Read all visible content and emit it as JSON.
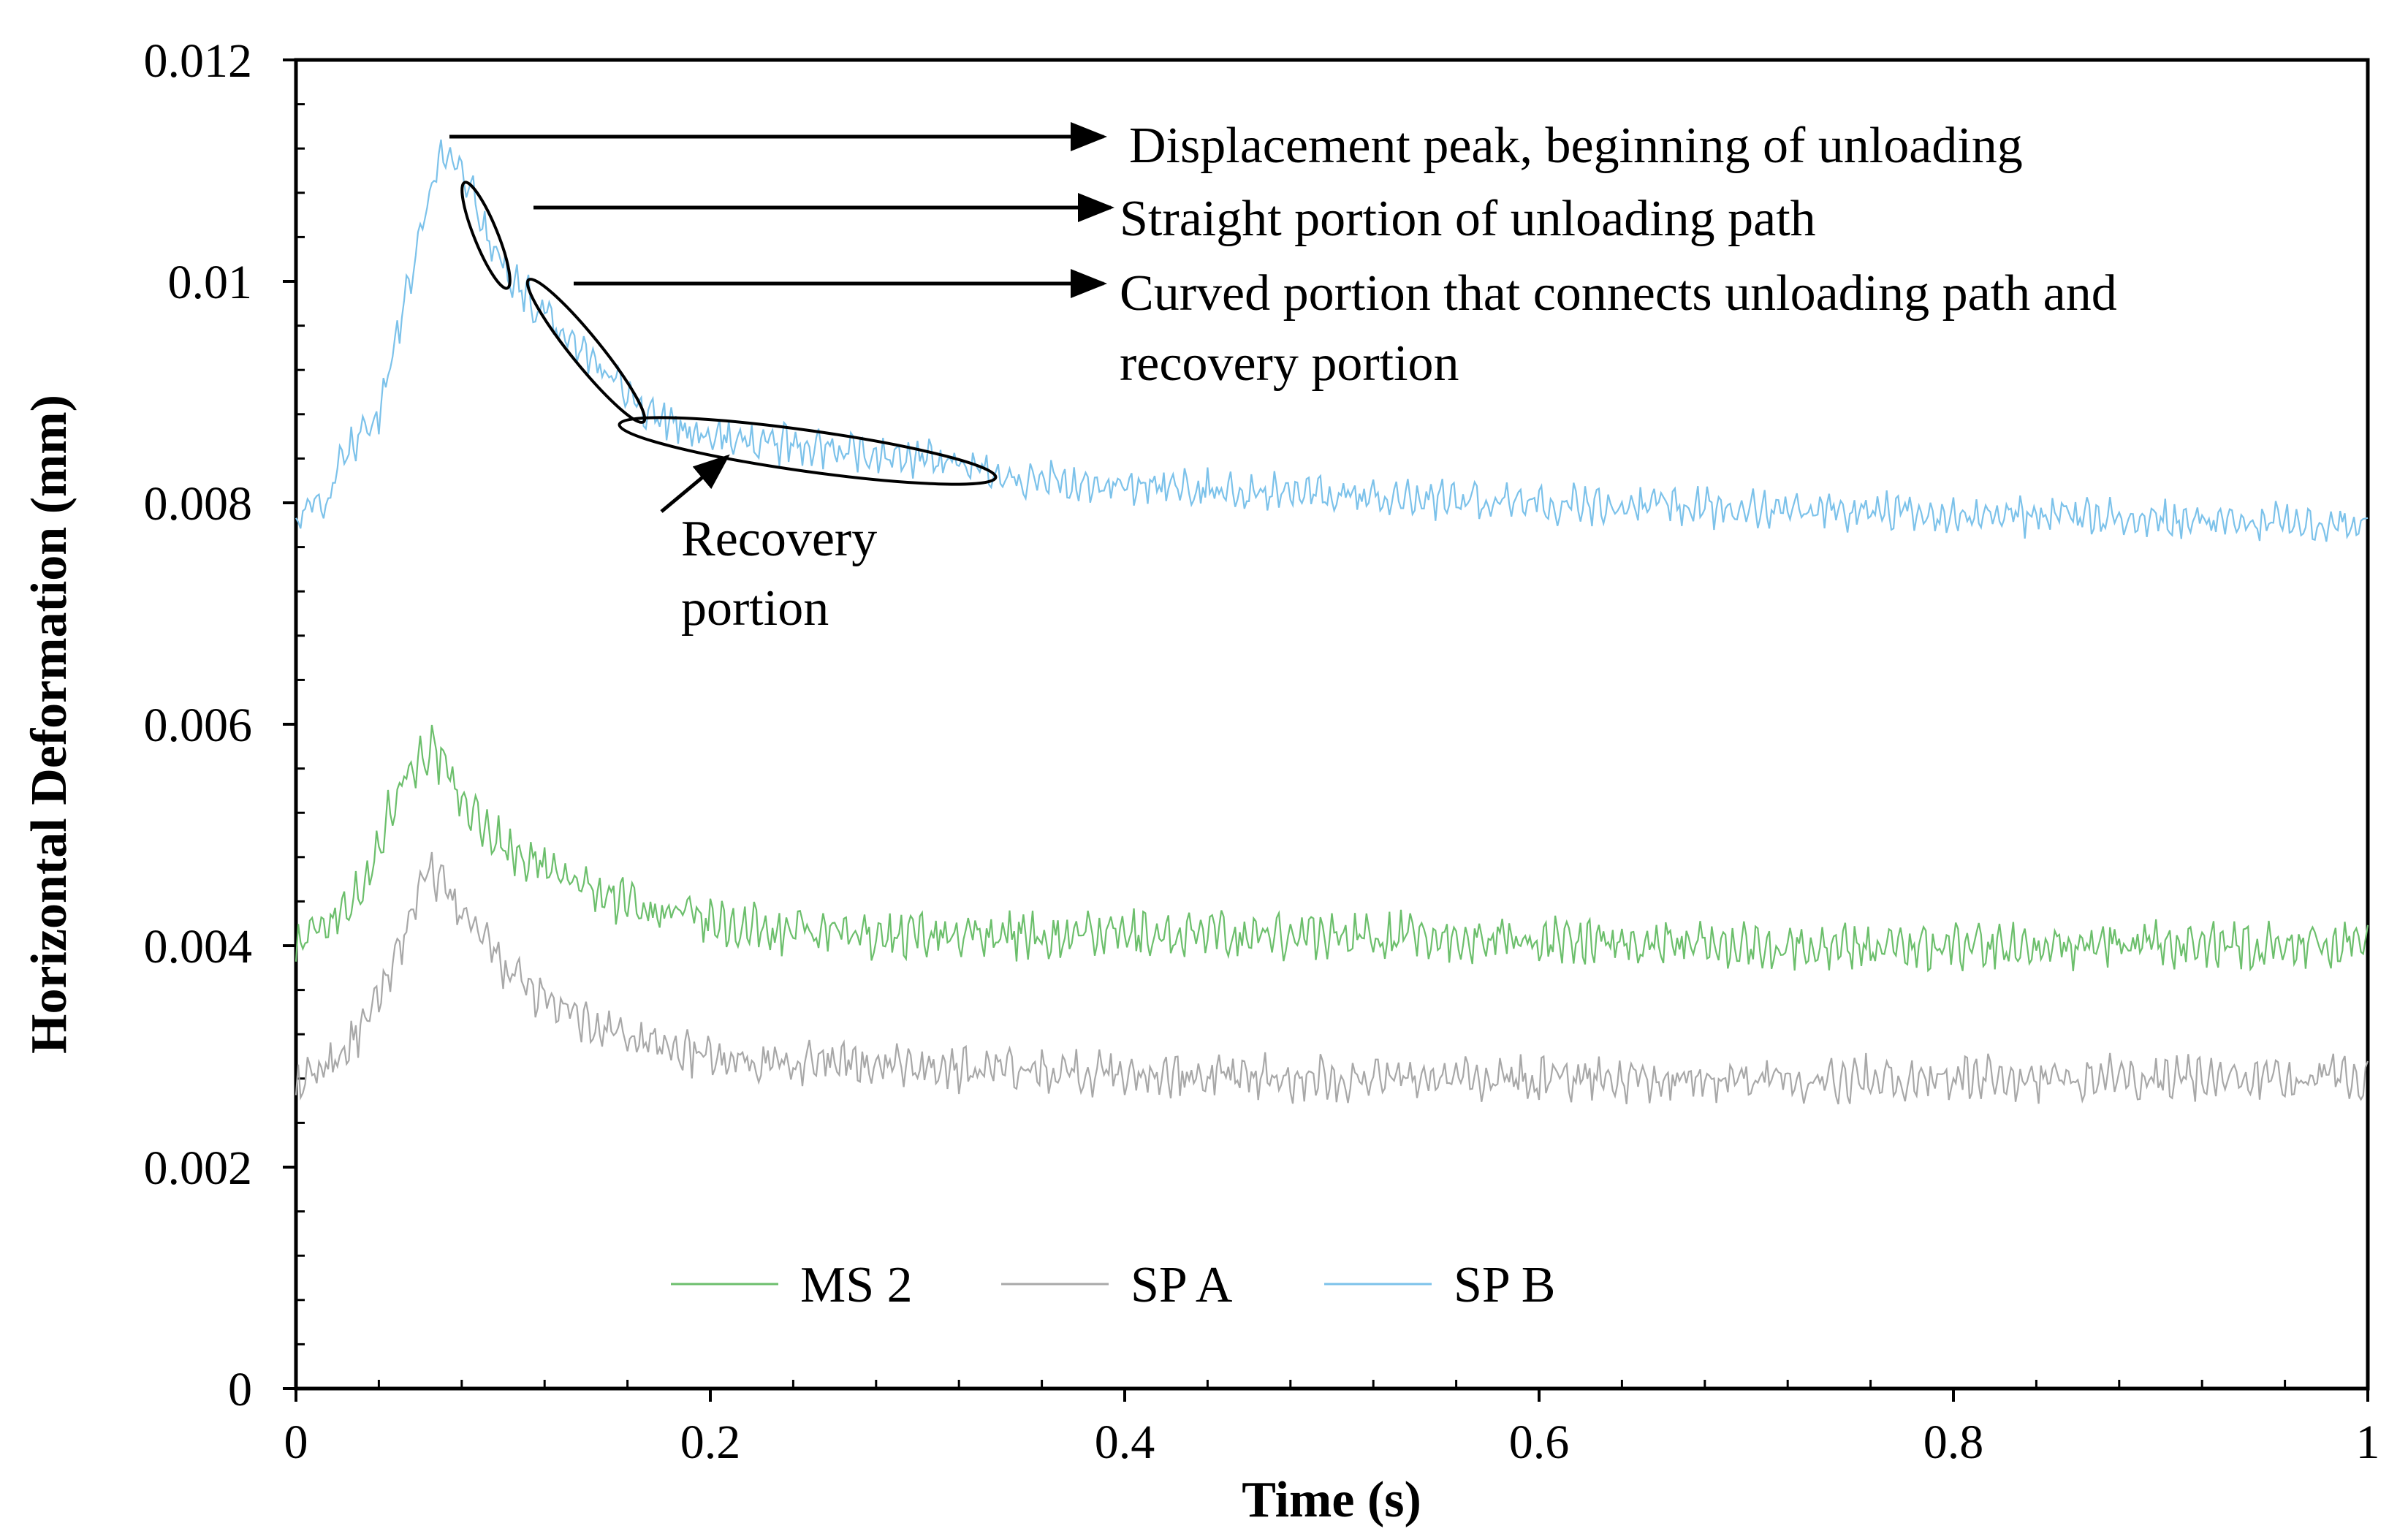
{
  "chart_data": {
    "type": "line",
    "title": "",
    "xlabel": "Time (s)",
    "ylabel": "Horizontal Deformation (mm)",
    "xlim": [
      0,
      1
    ],
    "ylim": [
      0,
      0.012
    ],
    "x_ticks": [
      0,
      0.2,
      0.4,
      0.6,
      0.8,
      1
    ],
    "x_tick_labels": [
      "0",
      "0.2",
      "0.4",
      "0.6",
      "0.8",
      "1"
    ],
    "y_ticks": [
      0,
      0.002,
      0.004,
      0.006,
      0.008,
      0.01,
      0.012
    ],
    "y_tick_labels": [
      "0",
      "0.002",
      "0.004",
      "0.006",
      "0.008",
      "0.01",
      "0.012"
    ],
    "grid": false,
    "legend_position": "bottom-center",
    "series": [
      {
        "name": "MS 2",
        "color": "#6cbf6c",
        "noise": 0.00018,
        "points": [
          [
            0,
            0.004
          ],
          [
            0.02,
            0.0043
          ],
          [
            0.035,
            0.0046
          ],
          [
            0.05,
            0.0055
          ],
          [
            0.065,
            0.0058
          ],
          [
            0.08,
            0.0053
          ],
          [
            0.1,
            0.0049
          ],
          [
            0.13,
            0.0046
          ],
          [
            0.16,
            0.0044
          ],
          [
            0.2,
            0.0042
          ],
          [
            0.25,
            0.0041
          ],
          [
            0.3,
            0.0041
          ],
          [
            0.5,
            0.0041
          ],
          [
            0.7,
            0.004
          ],
          [
            1.0,
            0.004
          ]
        ]
      },
      {
        "name": "SP A",
        "color": "#a8a8a8",
        "noise": 0.00017,
        "points": [
          [
            0,
            0.0027
          ],
          [
            0.02,
            0.003
          ],
          [
            0.035,
            0.0033
          ],
          [
            0.05,
            0.004
          ],
          [
            0.065,
            0.0047
          ],
          [
            0.08,
            0.0043
          ],
          [
            0.1,
            0.0038
          ],
          [
            0.12,
            0.0035
          ],
          [
            0.15,
            0.0032
          ],
          [
            0.2,
            0.003
          ],
          [
            0.3,
            0.0029
          ],
          [
            0.5,
            0.0028
          ],
          [
            1.0,
            0.0028
          ]
        ]
      },
      {
        "name": "SP B",
        "color": "#7cc2ea",
        "noise": 0.00015,
        "points": [
          [
            0,
            0.0079
          ],
          [
            0.015,
            0.008
          ],
          [
            0.025,
            0.0085
          ],
          [
            0.04,
            0.0088
          ],
          [
            0.05,
            0.0096
          ],
          [
            0.06,
            0.0104
          ],
          [
            0.07,
            0.0112
          ],
          [
            0.08,
            0.011
          ],
          [
            0.1,
            0.0101
          ],
          [
            0.13,
            0.0095
          ],
          [
            0.17,
            0.0088
          ],
          [
            0.2,
            0.0086
          ],
          [
            0.25,
            0.0085
          ],
          [
            0.3,
            0.0084
          ],
          [
            0.35,
            0.0082
          ],
          [
            0.45,
            0.0081
          ],
          [
            0.6,
            0.008
          ],
          [
            0.8,
            0.0079
          ],
          [
            1.0,
            0.0078
          ]
        ]
      }
    ],
    "annotations": {
      "peak": "Displacement peak, beginning of unloading",
      "straight": "Straight portion of unloading path",
      "curved_line1": "Curved portion that connects unloading path and",
      "curved_line2": "recovery portion",
      "recovery_line1": "Recovery",
      "recovery_line2": "portion"
    }
  }
}
